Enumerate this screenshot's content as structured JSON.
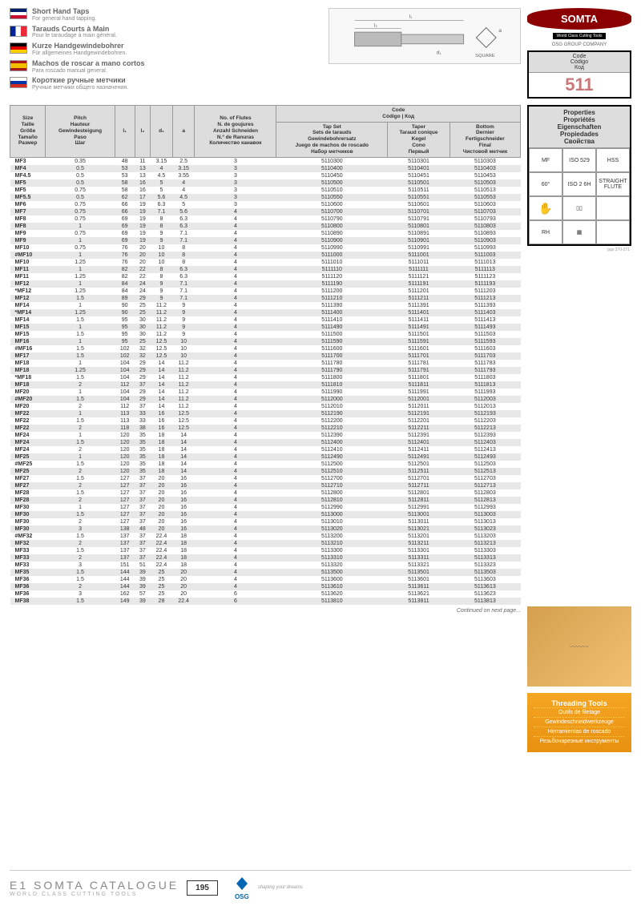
{
  "titles": [
    {
      "flag": "en",
      "main": "Short Hand Taps",
      "sub": "For general hand tapping."
    },
    {
      "flag": "fr",
      "main": "Tarauds Courts à Main",
      "sub": "Pour le taraudage à main général."
    },
    {
      "flag": "de",
      "main": "Kurze Handgewindebohrer",
      "sub": "Für allgemeines Handgewindebohren."
    },
    {
      "flag": "es",
      "main": "Machos de roscar a mano cortos",
      "sub": "Para roscado manual general."
    },
    {
      "flag": "ru",
      "main": "Короткие ручные метчики",
      "sub": "Ручные метчики общего назначения."
    }
  ],
  "logo": {
    "brand": "SOMTA",
    "tagline": "World Class Cutting Tools",
    "group": "OSG GROUP COMPANY"
  },
  "codeBox": {
    "hdr": "Code\nCódigo\nКод",
    "val": "511"
  },
  "square_label": "SQUARE",
  "headers": {
    "size": "Size\nTaille\nGröße\nTamaño\nРазмер",
    "pitch": "Pitch\nHauteur\nGewindesteigung\nPaso\nШаг",
    "l1": "l₁",
    "l2": "l₂",
    "d1": "d₁",
    "a": "a",
    "flutes": "No. of Flutes\nN. de goujures\nAnzahl Schneiden\nN.º de Ranuras\nКоличество канавок",
    "code": "Code\nCódigo | Код",
    "tapset": "Tap Set\nSets de tarauds\nGewindebohrersatz\nJuego de machos de roscado\nНабор метчиков",
    "taper": "Taper\nTaraud conique\nKegel\nCono\nПервый",
    "bottom": "Bottom\nDernier\nFertigschneider\nFinal\nЧистовой метчик"
  },
  "rows": [
    [
      "MF3",
      "0.35",
      "48",
      "11",
      "3.15",
      "2.5",
      "3",
      "5110300",
      "5110301",
      "5110303"
    ],
    [
      "MF4",
      "0.5",
      "53",
      "13",
      "4",
      "3.15",
      "3",
      "5110400",
      "5110401",
      "5110403"
    ],
    [
      "MF4.5",
      "0.5",
      "53",
      "13",
      "4.5",
      "3.55",
      "3",
      "5110450",
      "5110451",
      "5110453"
    ],
    [
      "MF5",
      "0.5",
      "58",
      "16",
      "5",
      "4",
      "3",
      "5110500",
      "5110501",
      "5110503"
    ],
    [
      "MF5",
      "0.75",
      "58",
      "16",
      "5",
      "4",
      "3",
      "5110510",
      "5110511",
      "5110513"
    ],
    [
      "MF5.5",
      "0.5",
      "62",
      "17",
      "5.6",
      "4.5",
      "3",
      "5110550",
      "5110551",
      "5110553"
    ],
    [
      "MF6",
      "0.75",
      "66",
      "19",
      "6.3",
      "5",
      "3",
      "5110600",
      "5110601",
      "5110603"
    ],
    [
      "MF7",
      "0.75",
      "66",
      "19",
      "7.1",
      "5.6",
      "4",
      "5110700",
      "5110701",
      "5110703"
    ],
    [
      "MF8",
      "0.75",
      "69",
      "19",
      "8",
      "6.3",
      "4",
      "5110790",
      "5110791",
      "5110793"
    ],
    [
      "MF8",
      "1",
      "69",
      "19",
      "8",
      "6.3",
      "4",
      "5110800",
      "5110801",
      "5110803"
    ],
    [
      "MF9",
      "0.75",
      "69",
      "19",
      "9",
      "7.1",
      "4",
      "5110890",
      "5110891",
      "5110893"
    ],
    [
      "MF9",
      "1",
      "69",
      "19",
      "9",
      "7.1",
      "4",
      "5110900",
      "5110901",
      "5110903"
    ],
    [
      "MF10",
      "0.75",
      "76",
      "20",
      "10",
      "8",
      "4",
      "5110990",
      "5110991",
      "5110993"
    ],
    [
      "#MF10",
      "1",
      "76",
      "20",
      "10",
      "8",
      "4",
      "5111000",
      "5111001",
      "5111003"
    ],
    [
      "MF10",
      "1.25",
      "76",
      "20",
      "10",
      "8",
      "4",
      "5111010",
      "5111011",
      "5111013"
    ],
    [
      "MF11",
      "1",
      "82",
      "22",
      "8",
      "6.3",
      "4",
      "5111110",
      "5111111",
      "5111113"
    ],
    [
      "MF11",
      "1.25",
      "82",
      "22",
      "8",
      "6.3",
      "4",
      "5111120",
      "5111121",
      "5111123"
    ],
    [
      "MF12",
      "1",
      "84",
      "24",
      "9",
      "7.1",
      "4",
      "5111190",
      "5111191",
      "5111193"
    ],
    [
      "*MF12",
      "1.25",
      "84",
      "24",
      "9",
      "7.1",
      "4",
      "5111200",
      "5111201",
      "5111203"
    ],
    [
      "MF12",
      "1.5",
      "89",
      "29",
      "9",
      "7.1",
      "4",
      "5111210",
      "5111211",
      "5111213"
    ],
    [
      "MF14",
      "1",
      "90",
      "25",
      "11.2",
      "9",
      "4",
      "5111390",
      "5111391",
      "5111393"
    ],
    [
      "*MF14",
      "1.25",
      "90",
      "25",
      "11.2",
      "9",
      "4",
      "5111400",
      "5111401",
      "5111403"
    ],
    [
      "MF14",
      "1.5",
      "95",
      "30",
      "11.2",
      "9",
      "4",
      "5111410",
      "5111411",
      "5111413"
    ],
    [
      "MF15",
      "1",
      "95",
      "30",
      "11.2",
      "9",
      "4",
      "5111490",
      "5111491",
      "5111493"
    ],
    [
      "MF15",
      "1.5",
      "95",
      "30",
      "11.2",
      "9",
      "4",
      "5111500",
      "5111501",
      "5111503"
    ],
    [
      "MF16",
      "1",
      "95",
      "25",
      "12.5",
      "10",
      "4",
      "5111590",
      "5111591",
      "5111593"
    ],
    [
      "#MF16",
      "1.5",
      "102",
      "32",
      "12.5",
      "10",
      "4",
      "5111600",
      "5111601",
      "5111603"
    ],
    [
      "MF17",
      "1.5",
      "102",
      "32",
      "12.5",
      "10",
      "4",
      "5111700",
      "5111701",
      "5111703"
    ],
    [
      "MF18",
      "1",
      "104",
      "29",
      "14",
      "11.2",
      "4",
      "5111780",
      "5111781",
      "5111783"
    ],
    [
      "MF18",
      "1.25",
      "104",
      "29",
      "14",
      "11.2",
      "4",
      "5111790",
      "5111791",
      "5111793"
    ],
    [
      "*MF18",
      "1.5",
      "104",
      "29",
      "14",
      "11.2",
      "4",
      "5111800",
      "5111801",
      "5111803"
    ],
    [
      "MF18",
      "2",
      "112",
      "37",
      "14",
      "11.2",
      "4",
      "5111810",
      "5111811",
      "5111813"
    ],
    [
      "MF20",
      "1",
      "104",
      "29",
      "14",
      "11.2",
      "4",
      "5111990",
      "5111991",
      "5111993"
    ],
    [
      "#MF20",
      "1.5",
      "104",
      "29",
      "14",
      "11.2",
      "4",
      "5112000",
      "5112001",
      "5112003"
    ],
    [
      "MF20",
      "2",
      "112",
      "37",
      "14",
      "11.2",
      "4",
      "5112010",
      "5112011",
      "5112013"
    ],
    [
      "MF22",
      "1",
      "113",
      "33",
      "16",
      "12.5",
      "4",
      "5112190",
      "5112191",
      "5112193"
    ],
    [
      "MF22",
      "1.5",
      "113",
      "33",
      "16",
      "12.5",
      "4",
      "5112200",
      "5112201",
      "5112203"
    ],
    [
      "MF22",
      "2",
      "118",
      "38",
      "16",
      "12.5",
      "4",
      "5112210",
      "5112211",
      "5112213"
    ],
    [
      "MF24",
      "1",
      "120",
      "35",
      "18",
      "14",
      "4",
      "5112390",
      "5112391",
      "5112393"
    ],
    [
      "MF24",
      "1.5",
      "120",
      "35",
      "18",
      "14",
      "4",
      "5112400",
      "5112401",
      "5112403"
    ],
    [
      "MF24",
      "2",
      "120",
      "35",
      "18",
      "14",
      "4",
      "5112410",
      "5112411",
      "5112413"
    ],
    [
      "MF25",
      "1",
      "120",
      "35",
      "18",
      "14",
      "4",
      "5112490",
      "5112491",
      "5112493"
    ],
    [
      "#MF25",
      "1.5",
      "120",
      "35",
      "18",
      "14",
      "4",
      "5112500",
      "5112501",
      "5112503"
    ],
    [
      "MF25",
      "2",
      "120",
      "35",
      "18",
      "14",
      "4",
      "5112510",
      "5112511",
      "5112513"
    ],
    [
      "MF27",
      "1.5",
      "127",
      "37",
      "20",
      "16",
      "4",
      "5112700",
      "5112701",
      "5112703"
    ],
    [
      "MF27",
      "2",
      "127",
      "37",
      "20",
      "16",
      "4",
      "5112710",
      "5112711",
      "5112713"
    ],
    [
      "MF28",
      "1.5",
      "127",
      "37",
      "20",
      "16",
      "4",
      "5112800",
      "5112801",
      "5112803"
    ],
    [
      "MF28",
      "2",
      "127",
      "37",
      "20",
      "16",
      "4",
      "5112810",
      "5112811",
      "5112813"
    ],
    [
      "MF30",
      "1",
      "127",
      "37",
      "20",
      "16",
      "4",
      "5112990",
      "5112991",
      "5112993"
    ],
    [
      "MF30",
      "1.5",
      "127",
      "37",
      "20",
      "16",
      "4",
      "5113000",
      "5113001",
      "5113003"
    ],
    [
      "MF30",
      "2",
      "127",
      "37",
      "20",
      "16",
      "4",
      "5113010",
      "5113011",
      "5113013"
    ],
    [
      "MF30",
      "3",
      "138",
      "48",
      "20",
      "16",
      "4",
      "5113020",
      "5113021",
      "5113023"
    ],
    [
      "#MF32",
      "1.5",
      "137",
      "37",
      "22.4",
      "18",
      "4",
      "5113200",
      "5113201",
      "5113203"
    ],
    [
      "MF32",
      "2",
      "137",
      "37",
      "22.4",
      "18",
      "4",
      "5113210",
      "5113211",
      "5113213"
    ],
    [
      "MF33",
      "1.5",
      "137",
      "37",
      "22.4",
      "18",
      "4",
      "5113300",
      "5113301",
      "5113303"
    ],
    [
      "MF33",
      "2",
      "137",
      "37",
      "22.4",
      "18",
      "4",
      "5113310",
      "5113311",
      "5113313"
    ],
    [
      "MF33",
      "3",
      "151",
      "51",
      "22.4",
      "18",
      "4",
      "5113320",
      "5113321",
      "5113323"
    ],
    [
      "MF35",
      "1.5",
      "144",
      "39",
      "25",
      "20",
      "4",
      "5113500",
      "5113501",
      "5113503"
    ],
    [
      "MF36",
      "1.5",
      "144",
      "39",
      "25",
      "20",
      "4",
      "5113600",
      "5113601",
      "5113603"
    ],
    [
      "MF36",
      "2",
      "144",
      "39",
      "25",
      "20",
      "4",
      "5113610",
      "5113611",
      "5113613"
    ],
    [
      "MF36",
      "3",
      "162",
      "57",
      "25",
      "20",
      "6",
      "5113620",
      "5113621",
      "5113623"
    ],
    [
      "MF38",
      "1.5",
      "149",
      "39",
      "28",
      "22.4",
      "6",
      "5113810",
      "5113811",
      "5113813"
    ]
  ],
  "continued": "Continued on next page...",
  "props": {
    "hdr": "Properties\nPropriétés\nEigenschaften\nPropiedades\nСвойства",
    "cells": [
      "MF",
      "ISO 529",
      "HSS",
      "60°",
      "ISO 2 6H",
      "STRAIGHT FLUTE",
      "✋",
      "▯▯",
      "",
      "RH",
      "▦",
      ""
    ],
    "pg": "pgs 270-271"
  },
  "threading": {
    "title": "Threading Tools",
    "lines": [
      "Outils de filetage",
      "Gewindeschneidwerkzeuge",
      "Herramientas de roscado",
      "Резьбонарезные инструменты"
    ]
  },
  "footer": {
    "title": "E1 SOMTA CATALOGUE",
    "sub": "WORLD CLASS CUTTING TOOLS",
    "page": "195",
    "osg": "OSG",
    "tagline": "shaping your dreams"
  }
}
